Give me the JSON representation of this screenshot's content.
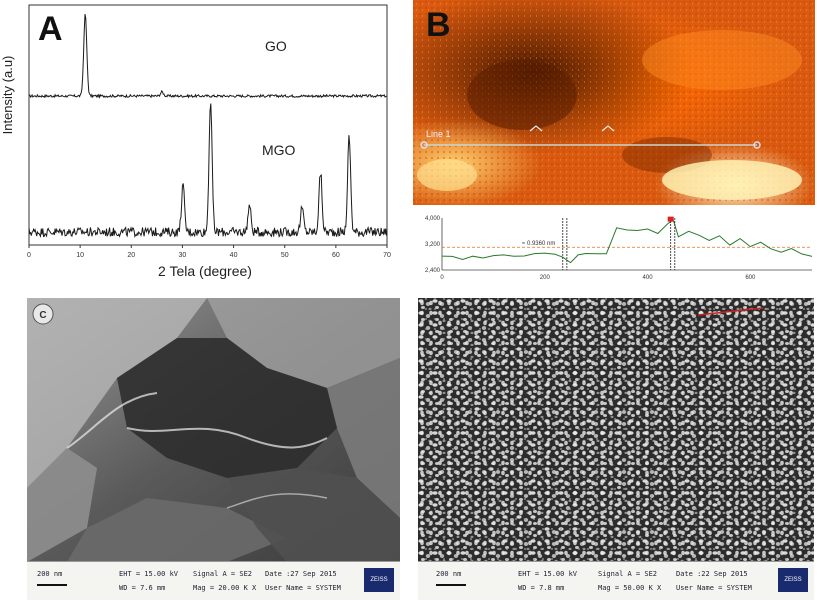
{
  "panels": {
    "a": {
      "letter": "A"
    },
    "b": {
      "letter": "B"
    }
  },
  "chart_data": [
    {
      "type": "line",
      "xlabel": "2 Tela (degree)",
      "ylabel": "Intensity (a.u)",
      "xticks": [
        "0",
        "10",
        "20",
        "30",
        "40",
        "50",
        "60",
        "70"
      ],
      "xlim": [
        0,
        70
      ],
      "series": [
        {
          "name": "GO",
          "peaks": [
            {
              "x": 11,
              "height": 1.0
            },
            {
              "x": 26,
              "height": 0.05
            }
          ]
        },
        {
          "name": "MGO",
          "peaks": [
            {
              "x": 30.1,
              "height": 0.35
            },
            {
              "x": 35.5,
              "height": 1.0
            },
            {
              "x": 43.1,
              "height": 0.2
            },
            {
              "x": 53.4,
              "height": 0.18
            },
            {
              "x": 57,
              "height": 0.45
            },
            {
              "x": 62.6,
              "height": 0.72
            }
          ]
        }
      ]
    },
    {
      "type": "line",
      "title": "",
      "yticks": [
        "4,000",
        "3,200",
        "2,400"
      ],
      "xticks": [
        "0",
        "200",
        "400",
        "600"
      ],
      "ylim": [
        2400,
        4000
      ],
      "xlim": [
        0,
        720
      ],
      "annotation": "≈ 0.9360 nm",
      "line_label": "Line 1",
      "profile": [
        [
          0,
          2800
        ],
        [
          20,
          2780
        ],
        [
          40,
          2750
        ],
        [
          60,
          2820
        ],
        [
          80,
          2760
        ],
        [
          100,
          2830
        ],
        [
          120,
          2900
        ],
        [
          140,
          2850
        ],
        [
          160,
          2800
        ],
        [
          180,
          2880
        ],
        [
          200,
          2950
        ],
        [
          220,
          2900
        ],
        [
          235,
          2820
        ],
        [
          250,
          2600
        ],
        [
          265,
          2880
        ],
        [
          280,
          2900
        ],
        [
          300,
          2880
        ],
        [
          320,
          2920
        ],
        [
          340,
          3700
        ],
        [
          360,
          3650
        ],
        [
          380,
          3600
        ],
        [
          400,
          3680
        ],
        [
          420,
          3500
        ],
        [
          440,
          3800
        ],
        [
          450,
          3950
        ],
        [
          460,
          3400
        ],
        [
          480,
          3600
        ],
        [
          500,
          3500
        ],
        [
          520,
          3300
        ],
        [
          540,
          3450
        ],
        [
          560,
          3200
        ],
        [
          580,
          3350
        ],
        [
          600,
          3100
        ],
        [
          620,
          3250
        ],
        [
          640,
          3050
        ],
        [
          660,
          2950
        ],
        [
          680,
          3100
        ],
        [
          700,
          2900
        ],
        [
          720,
          2850
        ]
      ],
      "reference_line_y": 3100
    }
  ],
  "sem_c": {
    "scale": "200 nm",
    "eht": "EHT = 15.00 kV",
    "wd": "WD = 7.6 mm",
    "signal": "Signal A = SE2",
    "mag": "Mag = 20.00 K X",
    "date": "Date :27 Sep 2015",
    "user": "User Name = SYSTEM",
    "brand": "ZEISS"
  },
  "sem_d": {
    "scale": "200 nm",
    "eht": "EHT = 15.00 kV",
    "wd": "WD = 7.8 mm",
    "signal": "Signal A = SE2",
    "mag": "Mag = 50.00 K X",
    "date": "Date :22 Sep 2015",
    "user": "User Name = SYSTEM",
    "brand": "ZEISS"
  }
}
